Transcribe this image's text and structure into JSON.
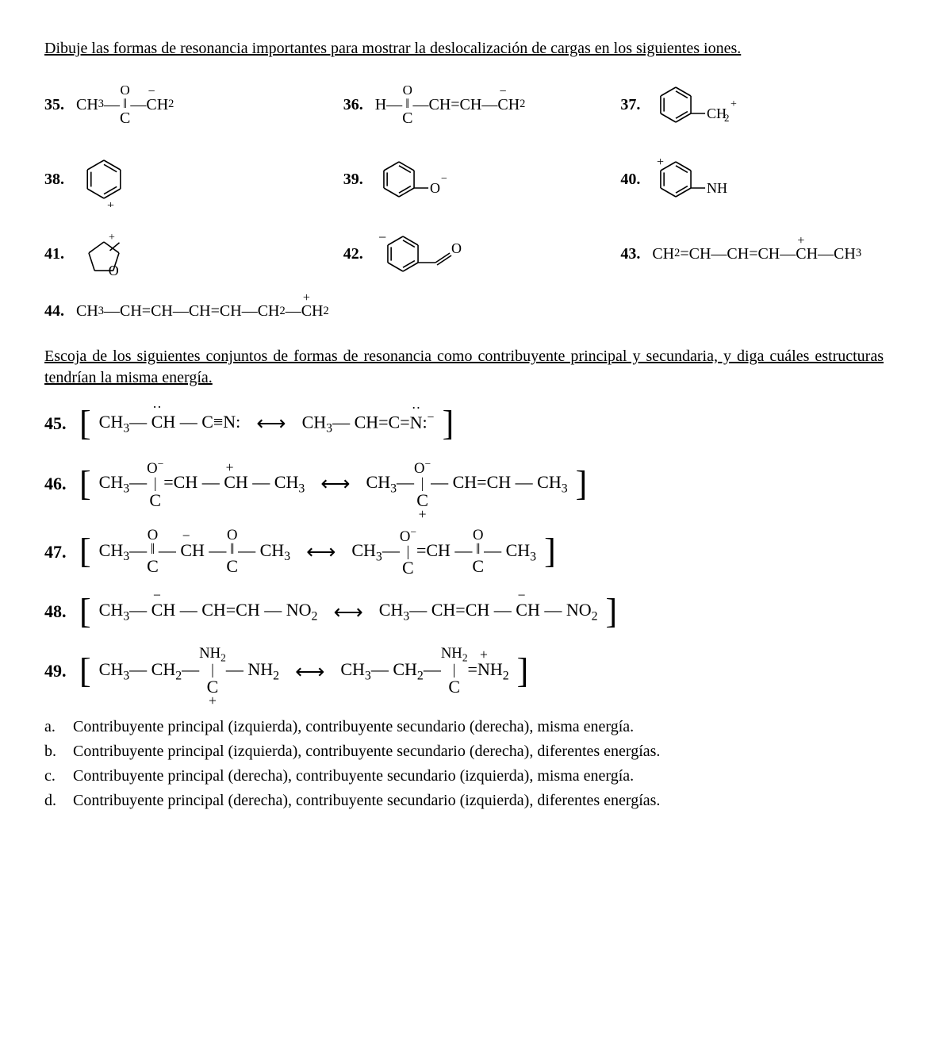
{
  "instruction1": "Dibuje las formas de resonancia importantes para mostrar la deslocalización de cargas en los siguientes iones.",
  "instruction2": "Escoja de los siguientes conjuntos de formas de resonancia como contribuyente principal y secundaria, y diga cuáles estructuras tendrían la misma energía.",
  "problems_draw": [
    {
      "num": "35.",
      "formula_html": "CH<sub>3</sub>—<span class='stack'><span class='top'>O</span><span class='top'>‖</span><span class='mid'>C</span></span>—<span class='over'><span class='ch'>C</span><span class='mark'>−</span></span>H<sub>2</sub>"
    },
    {
      "num": "36.",
      "formula_html": "H—<span class='stack'><span class='top'>O</span><span class='top'>‖</span><span class='mid'>C</span></span>—CH=CH—<span class='over'><span class='ch'>C</span><span class='mark'>−</span></span>H<sub>2</sub>"
    },
    {
      "num": "37.",
      "svg": "benzyl_cation"
    },
    {
      "num": "38.",
      "svg": "benzyl_cation_ring"
    },
    {
      "num": "39.",
      "svg": "phenolate"
    },
    {
      "num": "40.",
      "svg": "anilinium"
    },
    {
      "num": "41.",
      "svg": "furyl_cation"
    },
    {
      "num": "42.",
      "svg": "benzyl_carboxylate"
    },
    {
      "num": "43.",
      "formula_html": "CH<sub>2</sub>=CH—CH=CH—<span class='over'><span class='ch'>C</span><span class='mark'>+</span></span>H—CH<sub>3</sub>"
    },
    {
      "num": "44.",
      "formula_html": "CH<sub>3</sub>—CH=CH—CH=CH—CH<sub>2</sub>—<span class='over'><span class='ch'>C</span><span class='mark'>+</span></span>H<sub>2</sub>"
    }
  ],
  "resonance_pairs": [
    {
      "num": "45.",
      "left_html": "CH<sub>3</sub>— <span class='over'><span class='ch'>C</span><span class='mark'>··</span></span>H — C≡N:",
      "right_html": "CH<sub>3</sub>— CH=C=<span class='over'><span class='ch'>N</span><span class='mark'>··</span></span>:<sup>−</sup>",
      "charge_left": "−",
      "charge_right": "−"
    },
    {
      "num": "46.",
      "left_html": "CH<sub>3</sub>—<span class='stack'><span class='top'>O<sup>−</sup></span><span class='top'>|</span><span class='mid'>C</span></span>=CH — <span class='over'><span class='ch'>C</span><span class='mark'>+</span></span>H — CH<sub>3</sub>",
      "right_html": "CH<sub>3</sub>—<span class='stack'><span class='top'>O<sup>−</sup></span><span class='top'>|</span><span class='mid'><span class='over'><span class='ch'>C</span><span class='mark' style='top:auto;bottom:-0.9em;'>+</span></span></span></span>— CH=CH — CH<sub>3</sub>"
    },
    {
      "num": "47.",
      "left_html": "CH<sub>3</sub>—<span class='stack'><span class='top'>O</span><span class='top'>‖</span><span class='mid'>C</span></span>— <span class='over'><span class='ch'>C</span><span class='mark'>−</span></span>H —<span class='stack'><span class='top'>O</span><span class='top'>‖</span><span class='mid'>C</span></span>— CH<sub>3</sub>",
      "right_html": "CH<sub>3</sub>—<span class='stack'><span class='top'>O<sup>−</sup></span><span class='top'>|</span><span class='mid'>C</span></span>=CH —<span class='stack'><span class='top'>O</span><span class='top'>‖</span><span class='mid'>C</span></span>— CH<sub>3</sub>"
    },
    {
      "num": "48.",
      "left_html": "CH<sub>3</sub>— <span class='over'><span class='ch'>C</span><span class='mark'>−</span></span>H — CH=CH — NO<sub>2</sub>",
      "right_html": "CH<sub>3</sub>— CH=CH — <span class='over'><span class='ch'>C</span><span class='mark'>−</span></span>H — NO<sub>2</sub>"
    },
    {
      "num": "49.",
      "left_html": "CH<sub>3</sub>— CH<sub>2</sub>—<span class='stack'><span class='top'>NH<sub>2</sub></span><span class='top'>|</span><span class='mid'><span class='over'><span class='ch'>C</span><span class='mark' style='top:auto;bottom:-0.9em;'>+</span></span></span></span>— NH<sub>2</sub>",
      "right_html": "CH<sub>3</sub>— CH<sub>2</sub>—<span class='stack'><span class='top'>NH<sub>2</sub></span><span class='top'>|</span><span class='mid'>C</span></span>=<span class='over'><span class='ch'>N</span><span class='mark'>+</span></span>H<sub>2</sub>"
    }
  ],
  "options": [
    {
      "label": "a.",
      "text": "Contribuyente principal (izquierda), contribuyente secundario (derecha), misma energía."
    },
    {
      "label": "b.",
      "text": "Contribuyente principal (izquierda), contribuyente secundario (derecha), diferentes energías."
    },
    {
      "label": "c.",
      "text": "Contribuyente principal (derecha), contribuyente secundario (izquierda), misma energía."
    },
    {
      "label": "d.",
      "text": "Contribuyente principal (derecha), contribuyente secundario (izquierda), diferentes energías."
    }
  ],
  "svg_defs": {
    "benzyl_cation": {
      "type": "benzene_with_sub",
      "sub": "CH",
      "charge": "+",
      "sub_pos": "right",
      "charge_on": "sub",
      "extra_sub": "2"
    },
    "benzyl_cation_ring": {
      "type": "benzene_plain",
      "charge": "+",
      "charge_on": "corner"
    },
    "phenolate": {
      "type": "benzene_with_sub",
      "sub": "O",
      "charge": "−",
      "sub_pos": "right",
      "charge_on": "sub",
      "extra_sub": ""
    },
    "anilinium": {
      "type": "benzene_with_sub",
      "sub": "NH",
      "charge": "+",
      "sub_pos": "right_nh",
      "charge_on": "ring_left",
      "extra_sub": ""
    },
    "furyl_cation": {
      "type": "furan_cation"
    },
    "benzyl_carboxylate": {
      "type": "benzene_carboxylate"
    }
  },
  "colors": {
    "fg": "#000000",
    "bg": "#ffffff"
  },
  "fonts": {
    "body": "Times New Roman",
    "size_body": 20,
    "size_chem": 22
  }
}
